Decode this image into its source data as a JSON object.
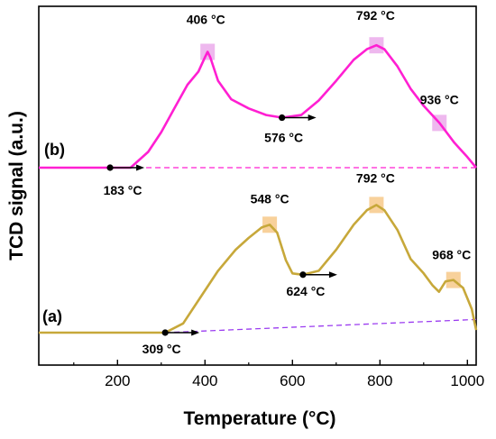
{
  "chart_data": {
    "type": "line",
    "title": "",
    "xlabel": "Temperature (°C)",
    "ylabel": "TCD signal (a.u.)",
    "xlim": [
      20,
      1020
    ],
    "xticks": [
      200,
      400,
      600,
      800,
      1000
    ],
    "yticks_shown": false,
    "grid": false,
    "legend": "none",
    "series": [
      {
        "name": "(b)",
        "color": "#ff1fd2",
        "baseline_color": "#ff1fd2",
        "highlight_color": "#e8a0e8",
        "x": [
          20,
          100,
          183,
          230,
          270,
          300,
          330,
          360,
          385,
          400,
          406,
          412,
          430,
          460,
          500,
          540,
          576,
          620,
          660,
          700,
          740,
          770,
          792,
          810,
          840,
          870,
          900,
          936,
          970,
          1000,
          1020
        ],
        "rel": [
          0.0,
          0.0,
          0.0,
          0.0,
          0.12,
          0.27,
          0.45,
          0.63,
          0.73,
          0.84,
          0.88,
          0.84,
          0.66,
          0.52,
          0.45,
          0.4,
          0.38,
          0.4,
          0.51,
          0.66,
          0.82,
          0.9,
          0.93,
          0.9,
          0.77,
          0.6,
          0.47,
          0.34,
          0.19,
          0.08,
          0.0
        ],
        "baseline": [
          [
            20,
            0.0
          ],
          [
            183,
            0.0
          ],
          [
            1020,
            0.0
          ]
        ]
      },
      {
        "name": "(a)",
        "color": "#c7a83a",
        "baseline_color": "#9b3cf0",
        "highlight_color": "#f5c27a",
        "x": [
          20,
          100,
          200,
          280,
          309,
          350,
          390,
          430,
          470,
          500,
          530,
          548,
          565,
          585,
          600,
          624,
          660,
          700,
          740,
          770,
          792,
          810,
          840,
          870,
          900,
          920,
          935,
          950,
          968,
          990,
          1010,
          1020
        ],
        "rel": [
          0.0,
          0.0,
          0.0,
          0.0,
          0.0,
          0.07,
          0.27,
          0.47,
          0.63,
          0.72,
          0.8,
          0.82,
          0.76,
          0.55,
          0.45,
          0.44,
          0.47,
          0.63,
          0.82,
          0.93,
          0.97,
          0.93,
          0.78,
          0.56,
          0.45,
          0.36,
          0.31,
          0.39,
          0.4,
          0.34,
          0.18,
          0.02
        ],
        "baseline": [
          [
            20,
            0.0
          ],
          [
            309,
            0.0
          ],
          [
            1020,
            0.1
          ]
        ]
      }
    ],
    "annotations": [
      {
        "text": "406 °C",
        "series": "(b)",
        "x": 406,
        "kind": "peak"
      },
      {
        "text": "792 °C",
        "series": "(b)",
        "x": 792,
        "kind": "peak"
      },
      {
        "text": "936 °C",
        "series": "(b)",
        "x": 936,
        "kind": "peak"
      },
      {
        "text": "576 °C",
        "series": "(b)",
        "x": 576,
        "kind": "onset"
      },
      {
        "text": "183 °C",
        "series": "(b)",
        "x": 183,
        "kind": "onset"
      },
      {
        "text": "548 °C",
        "series": "(a)",
        "x": 548,
        "kind": "peak"
      },
      {
        "text": "792 °C",
        "series": "(a)",
        "x": 792,
        "kind": "peak"
      },
      {
        "text": "968 °C",
        "series": "(a)",
        "x": 968,
        "kind": "peak"
      },
      {
        "text": "624 °C",
        "series": "(a)",
        "x": 624,
        "kind": "onset"
      },
      {
        "text": "309 °C",
        "series": "(a)",
        "x": 309,
        "kind": "onset"
      }
    ]
  }
}
